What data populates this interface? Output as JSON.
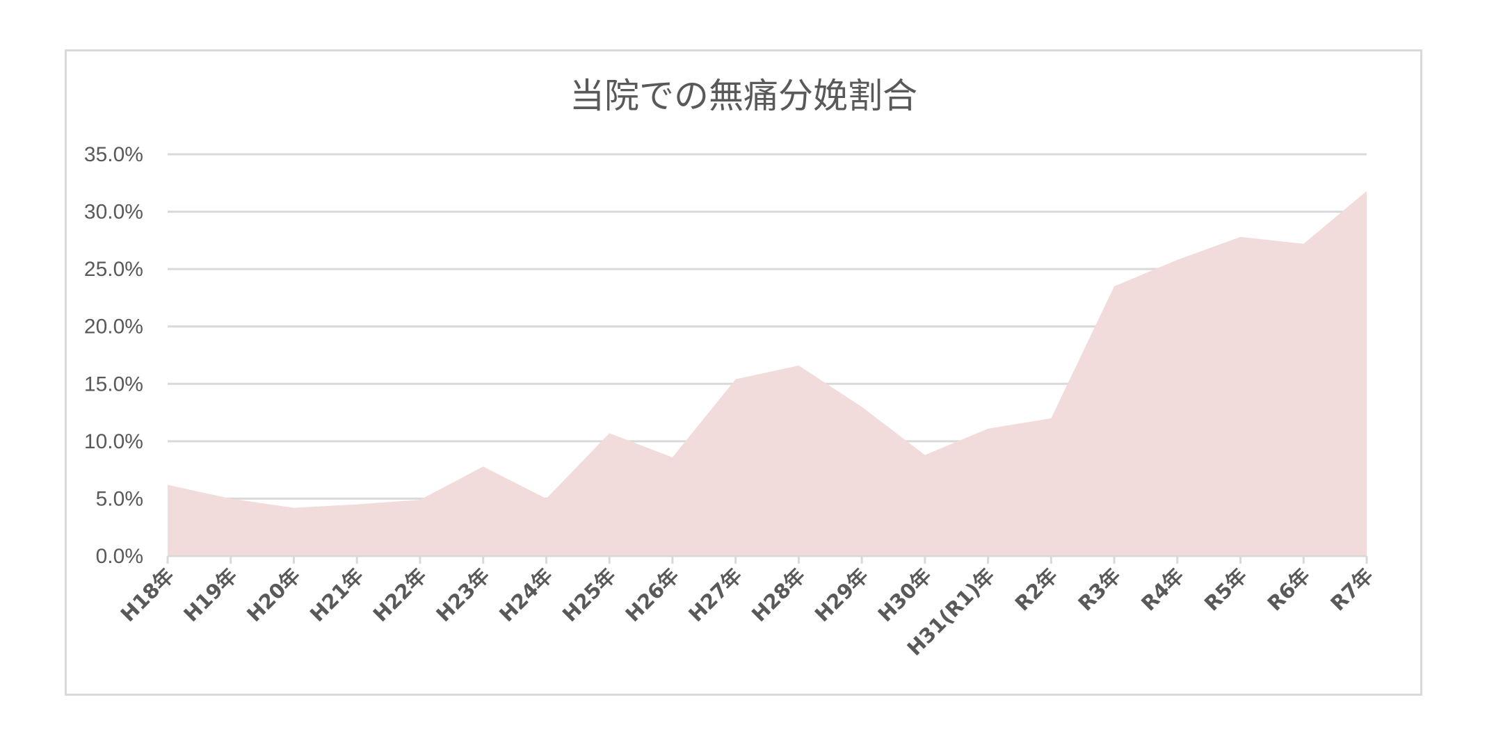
{
  "chart_data": {
    "type": "area",
    "title": "当院での無痛分娩割合",
    "xlabel": "",
    "ylabel": "",
    "categories": [
      "H18年",
      "H19年",
      "H20年",
      "H21年",
      "H22年",
      "H23年",
      "H24年",
      "H25年",
      "H26年",
      "H27年",
      "H28年",
      "H29年",
      "H30年",
      "H31(R1)年",
      "R2年",
      "R3年",
      "R4年",
      "R5年",
      "R6年",
      "R7年"
    ],
    "series": [
      {
        "values": [
          6.2,
          5.0,
          4.2,
          4.5,
          4.9,
          7.8,
          5.0,
          10.7,
          8.6,
          15.4,
          16.6,
          13.0,
          8.8,
          11.1,
          12.0,
          23.5,
          25.8,
          27.8,
          27.2,
          31.8
        ]
      }
    ],
    "ylim": [
      0,
      35
    ],
    "yticks": [
      "0.0%",
      "5.0%",
      "10.0%",
      "15.0%",
      "20.0%",
      "25.0%",
      "30.0%",
      "35.0%"
    ],
    "grid": true,
    "legend": "none",
    "colors": {
      "area_fill": "#f2dcdb",
      "gridline": "#d9d9d9",
      "text": "#595959"
    }
  }
}
